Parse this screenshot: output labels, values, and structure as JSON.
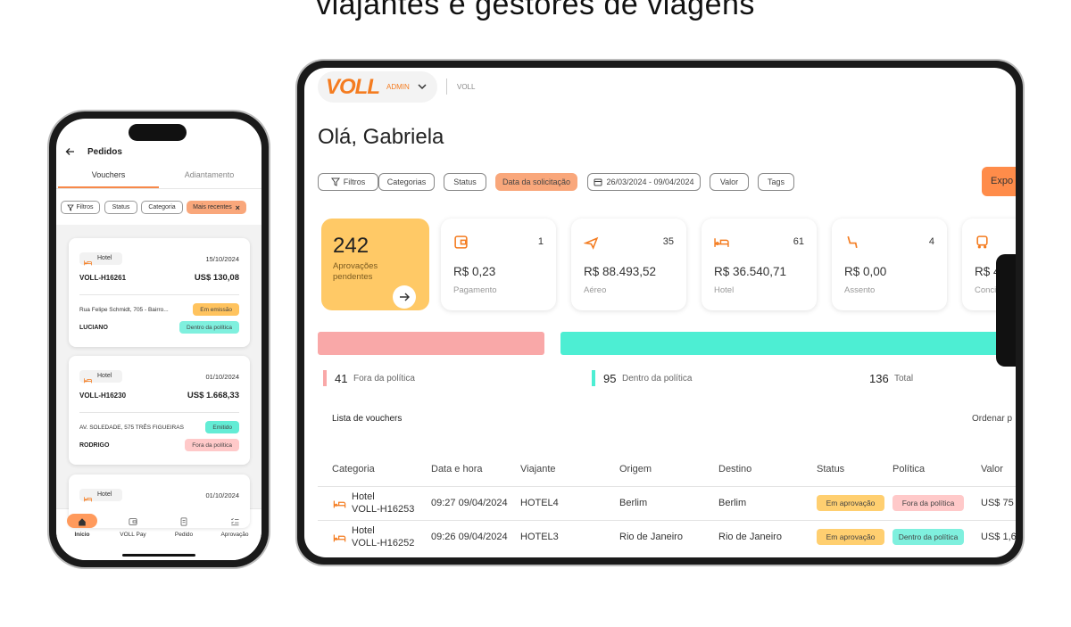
{
  "headline": "viajantes e gestores de viagens",
  "phone": {
    "title": "Pedidos",
    "tabs": [
      "Vouchers",
      "Adiantamento"
    ],
    "filters": [
      "Filtros",
      "Status",
      "Categoria",
      "Mais recentes"
    ],
    "vouchers": [
      {
        "category": "Hotel",
        "date": "15/10/2024",
        "code": "VOLL-H16261",
        "amount": "US$ 130,08",
        "address": "Rua Felipe Schmidt, 705 - Bairro...",
        "status": "Em emissão",
        "status_color": "#ffc35e",
        "traveler": "LUCIANO",
        "policy": "Dentro da política",
        "policy_color": "#7ff0de"
      },
      {
        "category": "Hotel",
        "date": "01/10/2024",
        "code": "VOLL-H16230",
        "amount": "US$ 1.668,33",
        "address": "AV. SOLEDADE, 575 TRÊS FIGUEIRAS",
        "status": "Emitido",
        "status_color": "#63ecd5",
        "traveler": "RODRIGO",
        "policy": "Fora da política",
        "policy_color": "#ffc9c9"
      },
      {
        "category": "Hotel",
        "date": "01/10/2024"
      }
    ],
    "nav": [
      "Início",
      "VOLL Pay",
      "Pedido",
      "Aprovação"
    ]
  },
  "tablet": {
    "logo": "VOLL",
    "role": "ADMIN",
    "company": "VOLL",
    "greeting": "Olá, Gabriela",
    "filters": [
      "Filtros",
      "Categorias",
      "Status",
      "Data da solicitação",
      "26/03/2024 - 09/04/2024",
      "Valor",
      "Tags"
    ],
    "export": "Expo",
    "approvals": {
      "count": 242,
      "label": "Aprovações pendentes"
    },
    "cards": [
      {
        "count": 1,
        "amount": "R$ 0,23",
        "label": "Pagamento"
      },
      {
        "count": 35,
        "amount": "R$ 88.493,52",
        "label": "Aéreo"
      },
      {
        "count": 61,
        "amount": "R$ 36.540,71",
        "label": "Hotel"
      },
      {
        "count": 4,
        "amount": "R$ 0,00",
        "label": "Assento"
      },
      {
        "amount": "R$ 4",
        "label": "Conci"
      }
    ],
    "policy": {
      "outside": 41,
      "outside_label": "Fora da política",
      "outside_color": "#f9a8a8",
      "inside": 95,
      "inside_label": "Dentro da política",
      "inside_color": "#4deed3",
      "total": 136,
      "total_label": "Total"
    },
    "list_title": "Lista de vouchers",
    "sort": "Ordenar p",
    "columns": [
      "Categoria",
      "Data e hora",
      "Viajante",
      "Origem",
      "Destino",
      "Status",
      "Política",
      "Valor"
    ],
    "rows": [
      {
        "category": "Hotel",
        "code": "VOLL-H16253",
        "datetime": "09:27  09/04/2024",
        "traveler": "HOTEL4",
        "origin": "Berlim",
        "destination": "Berlim",
        "status": "Em aprovação",
        "status_color": "#ffcf70",
        "policy": "Fora da política",
        "policy_color": "#ffc9c9",
        "value": "US$ 75"
      },
      {
        "category": "Hotel",
        "code": "VOLL-H16252",
        "datetime": "09:26  09/04/2024",
        "traveler": "HOTEL3",
        "origin": "Rio de Janeiro",
        "destination": "Rio de Janeiro",
        "status": "Em aprovação",
        "status_color": "#ffcf70",
        "policy": "Dentro da política",
        "policy_color": "#7ff0de",
        "value": "US$ 1,6"
      }
    ]
  }
}
